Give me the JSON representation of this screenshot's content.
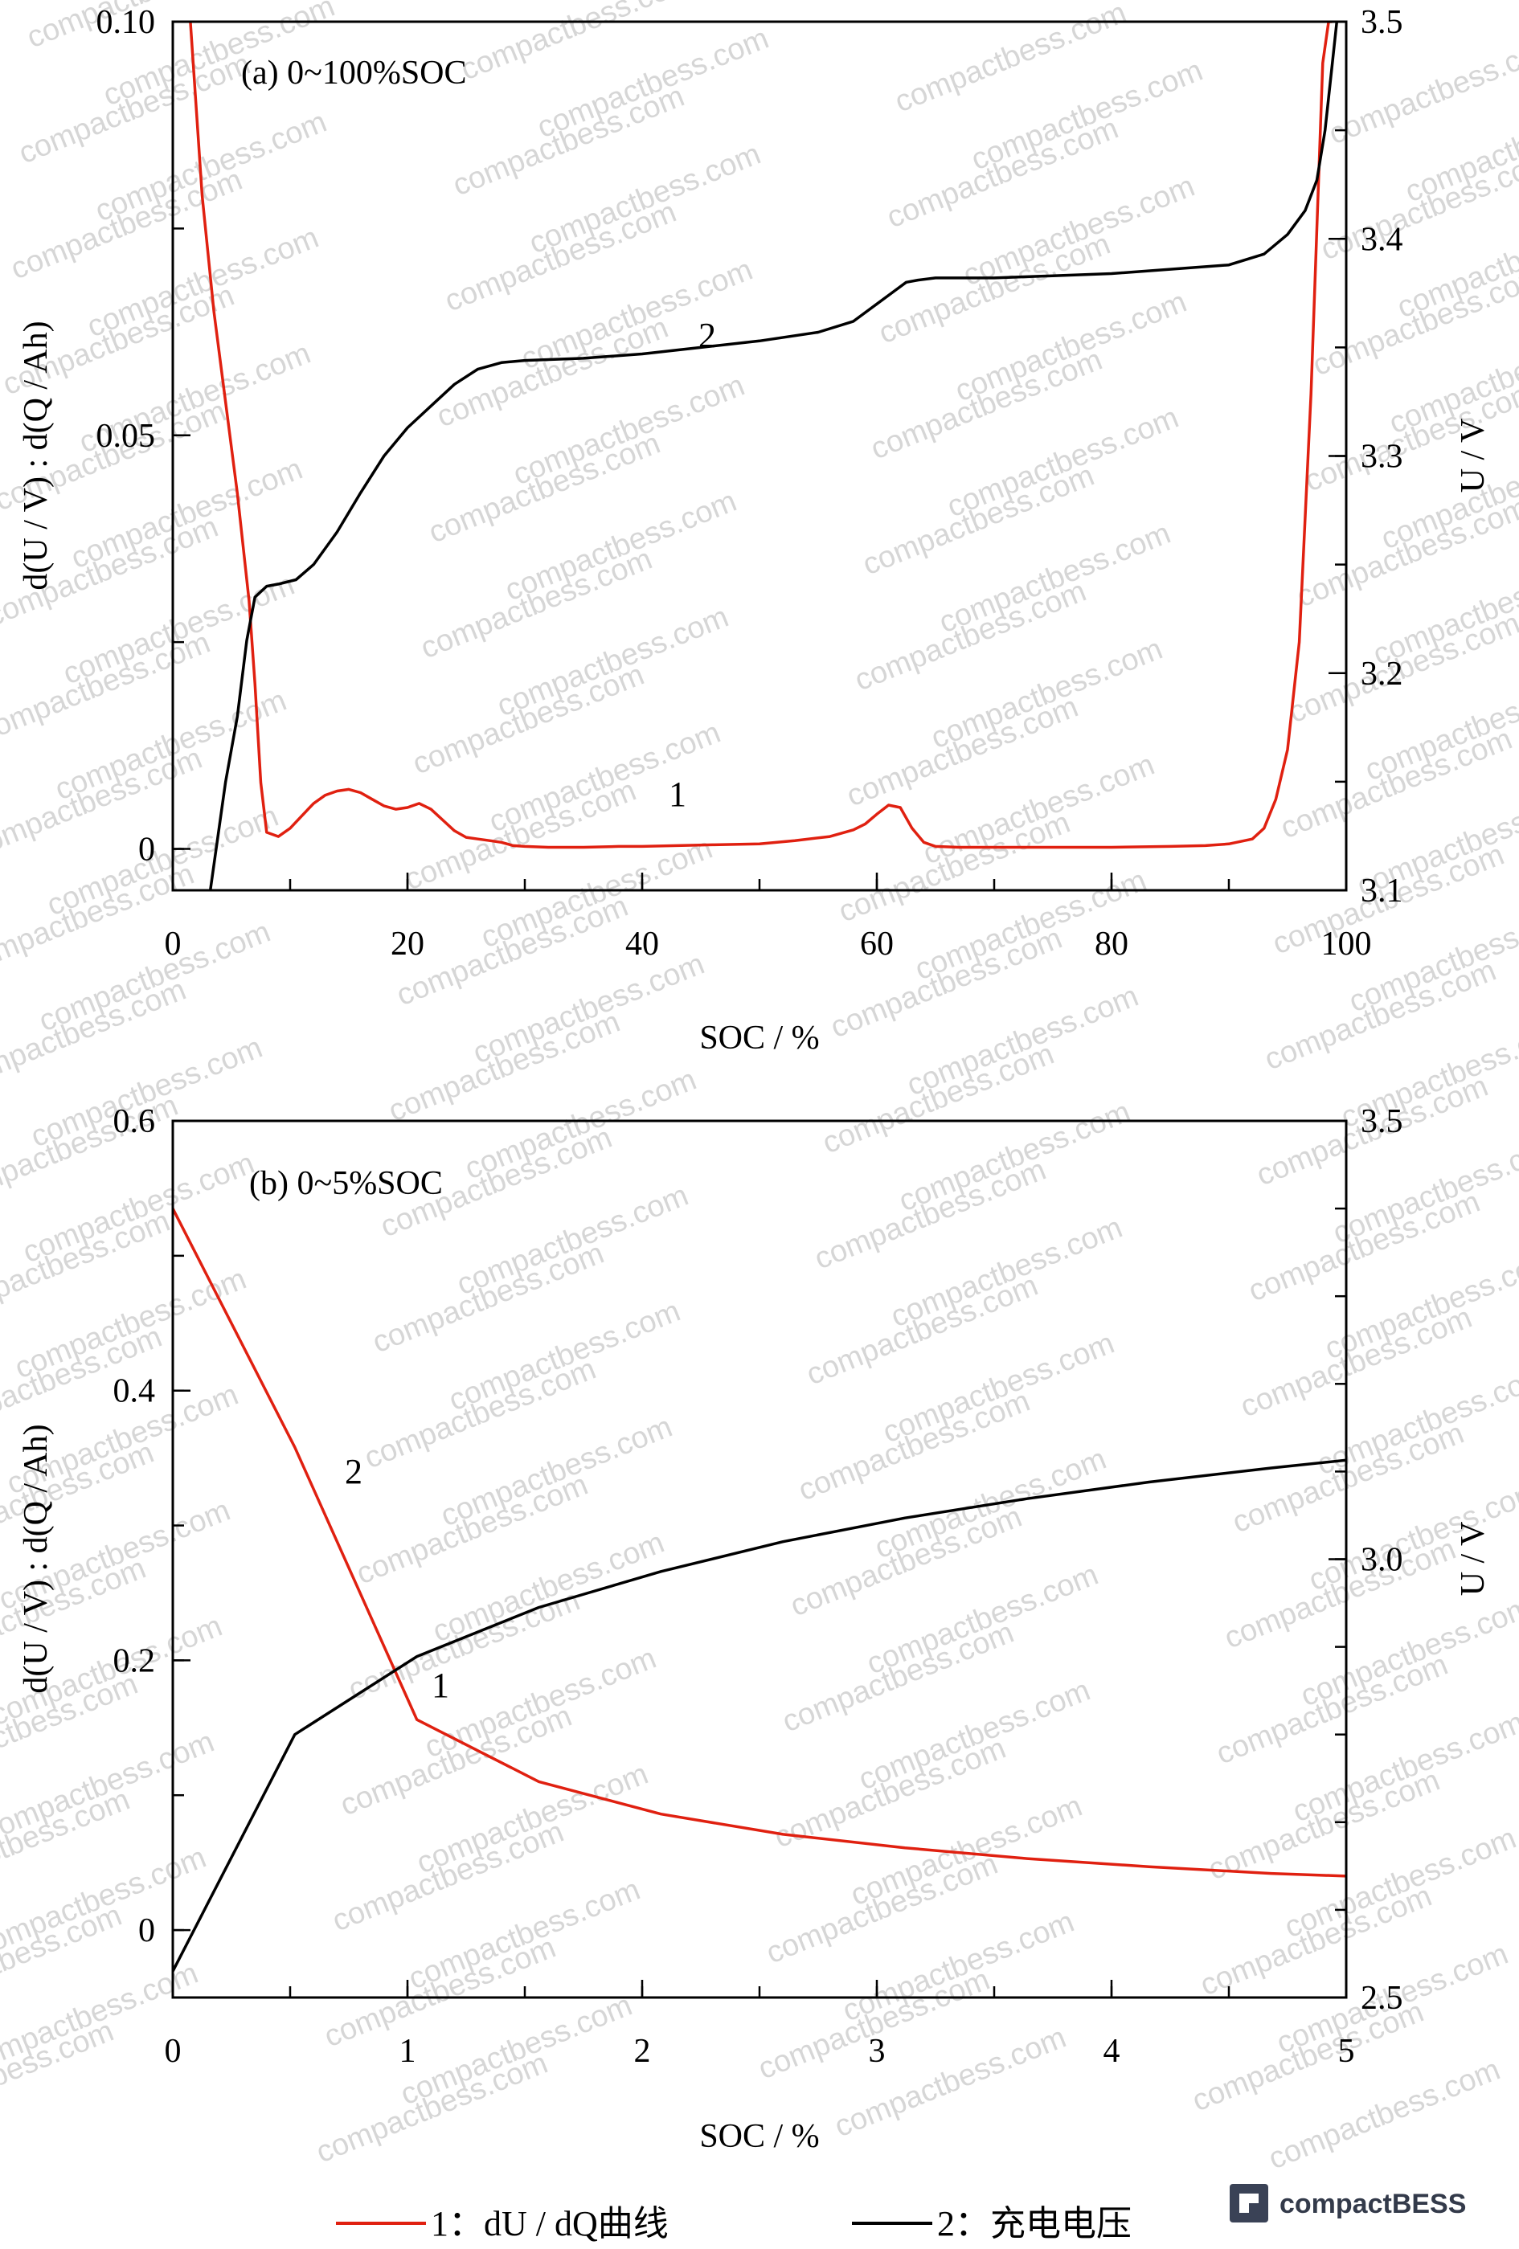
{
  "watermark_text": "compactbess.com",
  "logo_text": "compactBESS",
  "legend": [
    {
      "label": "1：dU / dQ曲线",
      "color": "#e02010"
    },
    {
      "label": "2：充电电压",
      "color": "#000000"
    }
  ],
  "chart_data": [
    {
      "type": "line",
      "title": "(a) 0~100%SOC",
      "xlabel": "SOC / %",
      "ylabel_left": "d(U / V) : d(Q / Ah)",
      "ylabel_right": "U / V",
      "xlim": [
        0,
        100
      ],
      "ylim_left": [
        -0.005,
        0.1
      ],
      "ylim_right": [
        3.1,
        3.5
      ],
      "xticks": [
        0,
        20,
        40,
        60,
        80,
        100
      ],
      "yticks_left": [
        0,
        0.05,
        0.1
      ],
      "yticks_left_labels": [
        "0",
        "0.05",
        "0.10"
      ],
      "yticks_right": [
        3.1,
        3.2,
        3.3,
        3.4,
        3.5
      ],
      "yticks_right_labels": [
        "3.1",
        "3.2",
        "3.3",
        "3.4",
        "3.5"
      ],
      "series": [
        {
          "name": "1",
          "axis": "left",
          "color": "#e02010",
          "x": [
            1.5,
            2.5,
            3.5,
            4.5,
            5.5,
            6.5,
            7.0,
            7.5,
            8.0,
            9,
            10,
            11,
            12,
            13,
            14,
            15,
            16,
            17,
            18,
            19,
            20,
            21,
            22,
            23,
            24,
            25,
            26,
            27,
            28,
            29,
            30,
            32,
            35,
            38,
            40,
            43,
            46,
            50,
            53,
            56,
            58,
            59,
            60,
            61,
            62,
            63,
            64,
            65,
            67,
            70,
            75,
            80,
            85,
            88,
            90,
            92,
            93,
            94,
            95,
            96,
            97,
            97.5,
            98,
            98.5,
            98.8
          ],
          "y": [
            0.1,
            0.079,
            0.065,
            0.054,
            0.043,
            0.03,
            0.02,
            0.008,
            0.002,
            0.0015,
            0.0025,
            0.004,
            0.0055,
            0.0065,
            0.007,
            0.0072,
            0.0068,
            0.006,
            0.0052,
            0.0048,
            0.005,
            0.0055,
            0.0048,
            0.0035,
            0.0022,
            0.0014,
            0.0012,
            0.001,
            0.0008,
            0.0004,
            0.0003,
            0.0002,
            0.0002,
            0.0003,
            0.0003,
            0.0004,
            0.0005,
            0.0006,
            0.001,
            0.0015,
            0.0023,
            0.003,
            0.0042,
            0.0053,
            0.005,
            0.0025,
            0.0008,
            0.0003,
            0.0002,
            0.0002,
            0.0002,
            0.0002,
            0.0003,
            0.0004,
            0.0006,
            0.0012,
            0.0025,
            0.006,
            0.012,
            0.025,
            0.055,
            0.075,
            0.095,
            0.1,
            0.1
          ]
        },
        {
          "name": "2",
          "axis": "right",
          "color": "#000000",
          "x": [
            3.2,
            4.5,
            5.5,
            6.3,
            7.0,
            8.0,
            9.0,
            10.5,
            12,
            14,
            16,
            18,
            20,
            22,
            24,
            26,
            28,
            30,
            35,
            40,
            45,
            50,
            55,
            58,
            60,
            61.5,
            62.5,
            63.5,
            65,
            70,
            75,
            80,
            85,
            90,
            93,
            95,
            96.5,
            97.5,
            98.2,
            98.8,
            99.2
          ],
          "y": [
            3.1,
            3.15,
            3.18,
            3.215,
            3.235,
            3.24,
            3.241,
            3.243,
            3.25,
            3.265,
            3.283,
            3.3,
            3.313,
            3.323,
            3.333,
            3.34,
            3.343,
            3.344,
            3.345,
            3.347,
            3.35,
            3.353,
            3.357,
            3.362,
            3.37,
            3.376,
            3.38,
            3.381,
            3.382,
            3.382,
            3.383,
            3.384,
            3.386,
            3.388,
            3.393,
            3.402,
            3.413,
            3.427,
            3.45,
            3.48,
            3.5
          ]
        }
      ],
      "annotations": [
        "1",
        "2"
      ]
    },
    {
      "type": "line",
      "title": "(b) 0~5%SOC",
      "xlabel": "SOC / %",
      "ylabel_left": "d(U / V) : d(Q / Ah)",
      "ylabel_right": "U / V",
      "xlim": [
        0,
        5
      ],
      "ylim_left": [
        -0.05,
        0.6
      ],
      "ylim_right": [
        2.5,
        3.5
      ],
      "xticks": [
        0,
        1,
        2,
        3,
        4,
        5
      ],
      "yticks_left": [
        0,
        0.2,
        0.4,
        0.6
      ],
      "yticks_left_labels": [
        "0",
        "0.2",
        "0.4",
        "0.6"
      ],
      "yticks_right": [
        2.5,
        3.0,
        3.5
      ],
      "yticks_right_labels": [
        "2.5",
        "3.0",
        "3.5"
      ],
      "series": [
        {
          "name": "1",
          "axis": "left",
          "color": "#e02010",
          "x": [
            0,
            0.52,
            1.04,
            1.56,
            2.08,
            2.6,
            3.12,
            3.64,
            4.16,
            4.68,
            5.0
          ],
          "y": [
            0.535,
            0.358,
            0.156,
            0.11,
            0.086,
            0.071,
            0.061,
            0.053,
            0.047,
            0.042,
            0.04
          ]
        },
        {
          "name": "2",
          "axis": "right",
          "color": "#000000",
          "x": [
            0,
            0.52,
            1.04,
            1.56,
            2.08,
            2.6,
            3.12,
            3.64,
            4.16,
            4.68,
            5.0
          ],
          "y": [
            2.53,
            2.8,
            2.889,
            2.945,
            2.986,
            3.02,
            3.047,
            3.069,
            3.088,
            3.104,
            3.113
          ]
        }
      ],
      "annotations": [
        "1",
        "2"
      ]
    }
  ]
}
